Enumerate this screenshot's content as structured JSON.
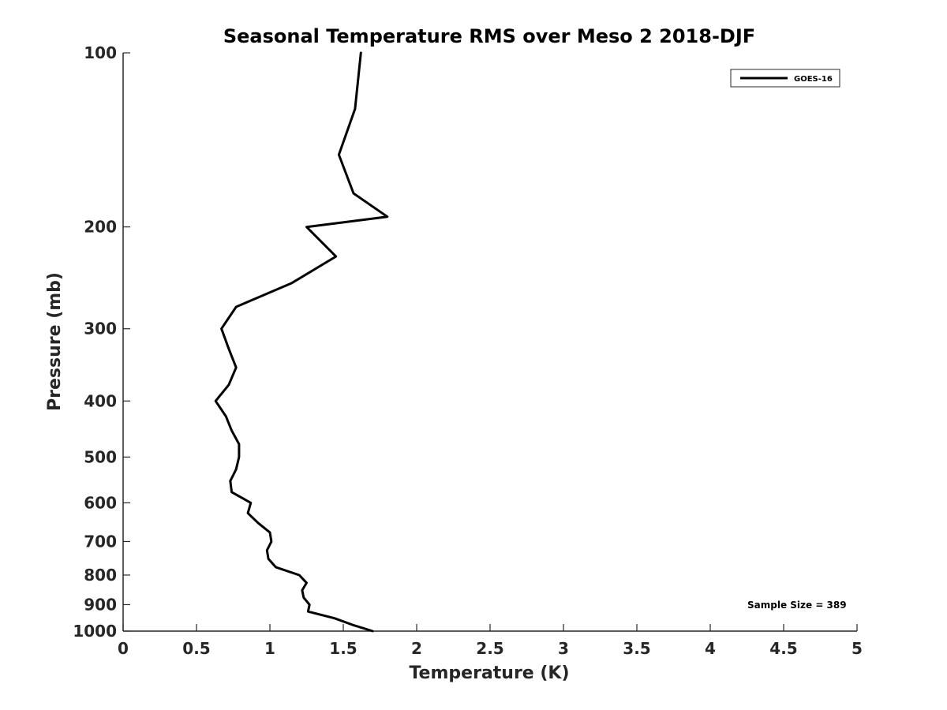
{
  "chart_data": {
    "type": "line",
    "title": "Seasonal Temperature RMS over Meso 2  2018-DJF",
    "xlabel": "Temperature (K)",
    "ylabel": "Pressure (mb)",
    "xlim": [
      0,
      5
    ],
    "ylim": [
      1000,
      100
    ],
    "yscale": "log",
    "x_ticks": [
      0,
      0.5,
      1,
      1.5,
      2,
      2.5,
      3,
      3.5,
      4,
      4.5,
      5
    ],
    "x_tick_labels": [
      "0",
      "0.5",
      "1",
      "1.5",
      "2",
      "2.5",
      "3",
      "3.5",
      "4",
      "4.5",
      "5"
    ],
    "y_ticks": [
      100,
      200,
      300,
      400,
      500,
      600,
      700,
      800,
      900,
      1000
    ],
    "y_tick_labels": [
      "100",
      "200",
      "300",
      "400",
      "500",
      "600",
      "700",
      "800",
      "900",
      "1000"
    ],
    "grid": false,
    "legend_position": "top-right",
    "annotation": "Sample Size = 389",
    "series": [
      {
        "name": "GOES-16",
        "color": "#000000",
        "points": [
          {
            "t": 1.62,
            "p": 100
          },
          {
            "t": 1.58,
            "p": 125
          },
          {
            "t": 1.47,
            "p": 150
          },
          {
            "t": 1.57,
            "p": 175
          },
          {
            "t": 1.8,
            "p": 192
          },
          {
            "t": 1.25,
            "p": 200
          },
          {
            "t": 1.45,
            "p": 225
          },
          {
            "t": 1.15,
            "p": 250
          },
          {
            "t": 0.77,
            "p": 275
          },
          {
            "t": 0.67,
            "p": 300
          },
          {
            "t": 0.72,
            "p": 325
          },
          {
            "t": 0.77,
            "p": 350
          },
          {
            "t": 0.72,
            "p": 375
          },
          {
            "t": 0.63,
            "p": 400
          },
          {
            "t": 0.7,
            "p": 425
          },
          {
            "t": 0.74,
            "p": 450
          },
          {
            "t": 0.79,
            "p": 475
          },
          {
            "t": 0.79,
            "p": 500
          },
          {
            "t": 0.77,
            "p": 525
          },
          {
            "t": 0.73,
            "p": 550
          },
          {
            "t": 0.74,
            "p": 575
          },
          {
            "t": 0.87,
            "p": 600
          },
          {
            "t": 0.85,
            "p": 625
          },
          {
            "t": 0.92,
            "p": 650
          },
          {
            "t": 1.0,
            "p": 675
          },
          {
            "t": 1.01,
            "p": 700
          },
          {
            "t": 0.98,
            "p": 725
          },
          {
            "t": 0.99,
            "p": 750
          },
          {
            "t": 1.04,
            "p": 775
          },
          {
            "t": 1.2,
            "p": 800
          },
          {
            "t": 1.25,
            "p": 825
          },
          {
            "t": 1.22,
            "p": 850
          },
          {
            "t": 1.23,
            "p": 875
          },
          {
            "t": 1.27,
            "p": 900
          },
          {
            "t": 1.26,
            "p": 925
          },
          {
            "t": 1.44,
            "p": 950
          },
          {
            "t": 1.56,
            "p": 975
          },
          {
            "t": 1.7,
            "p": 1000
          }
        ]
      }
    ]
  }
}
